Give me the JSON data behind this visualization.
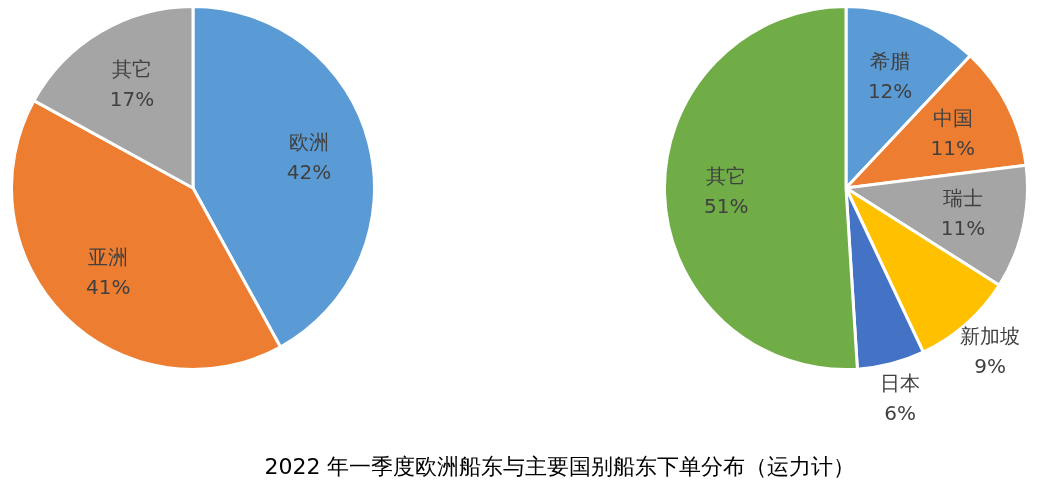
{
  "chart_data": [
    {
      "type": "pie",
      "categories": [
        "欧洲",
        "亚洲",
        "其它"
      ],
      "values": [
        42,
        41,
        17
      ],
      "value_labels": [
        "42%",
        "41%",
        "17%"
      ],
      "colors": [
        "#5b9bd5",
        "#ed7d31",
        "#a5a5a5"
      ],
      "legend": false,
      "annotations": [
        "2022 年一季度欧洲船东与主要国别船东下单分布（运力计）"
      ]
    },
    {
      "type": "pie",
      "categories": [
        "希腊",
        "中国",
        "瑞士",
        "新加坡",
        "日本",
        "其它"
      ],
      "values": [
        12,
        11,
        11,
        9,
        6,
        51
      ],
      "value_labels": [
        "12%",
        "11%",
        "11%",
        "9%",
        "6%",
        "51%"
      ],
      "colors": [
        "#5b9bd5",
        "#ed7d31",
        "#a5a5a5",
        "#ffc000",
        "#4472c4",
        "#70ad47"
      ],
      "legend": false
    }
  ]
}
